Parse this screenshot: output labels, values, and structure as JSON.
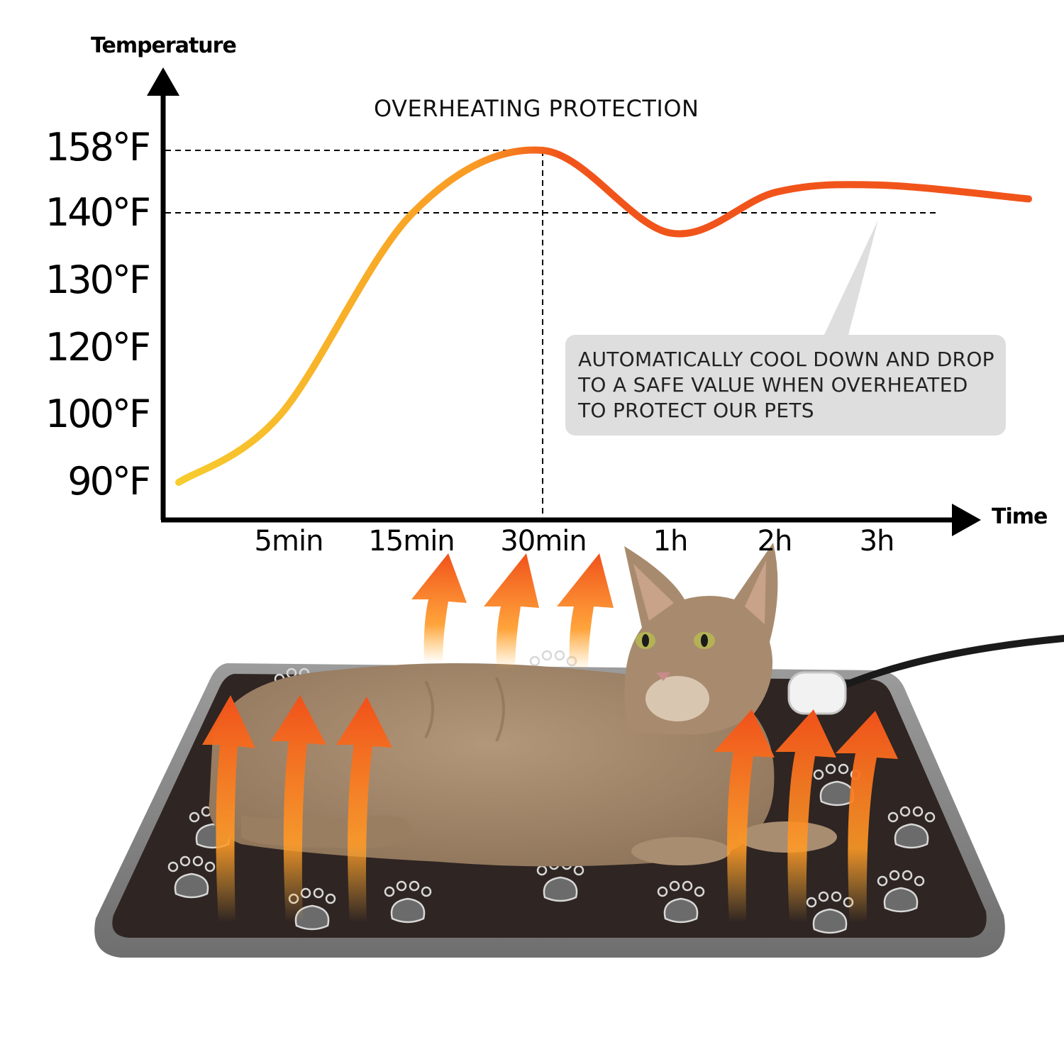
{
  "chart_data": {
    "type": "line",
    "title": "OVERHEATING PROTECTION",
    "xlabel": "Time",
    "ylabel": "Temperature",
    "x_categories": [
      "5min",
      "15min",
      "30min",
      "1h",
      "2h",
      "3h"
    ],
    "y_ticks": [
      "158°F",
      "140°F",
      "130°F",
      "120°F",
      "100°F",
      "90°F"
    ],
    "series": [
      {
        "values": [
          {
            "x": "start",
            "y": 90
          },
          {
            "x": "5min",
            "y": 100
          },
          {
            "x": "15min",
            "y": 140
          },
          {
            "x": "30min",
            "y": 158
          },
          {
            "x": "1h",
            "y": 137
          },
          {
            "x": "2h",
            "y": 146
          },
          {
            "x": "3h",
            "y": 148
          },
          {
            "x": "end",
            "y": 144
          }
        ]
      }
    ],
    "reference_lines": [
      {
        "y": 158,
        "label": "158°F"
      },
      {
        "y": 140,
        "label": "140°F"
      }
    ],
    "marker_x": "30min",
    "annotation": {
      "lines": [
        "AUTOMATICALLY COOL DOWN AND DROP",
        "TO A SAFE VALUE WHEN  OVERHEATED",
        "TO PROTECT OUR PETS"
      ]
    },
    "grid": false,
    "colors": {
      "curve_start": "#f7cc2e",
      "curve_mid": "#f99a24",
      "curve_end": "#f1541a",
      "heat_arrow": "#f2671a",
      "axis": "#000000",
      "callout_bg": "#dedede"
    }
  },
  "illustration": {
    "subject": "cat-lying-on-heating-pad",
    "pad_color": "#2f2522",
    "pad_border_color": "#8a8a8a",
    "cat_color": "#a08468"
  }
}
